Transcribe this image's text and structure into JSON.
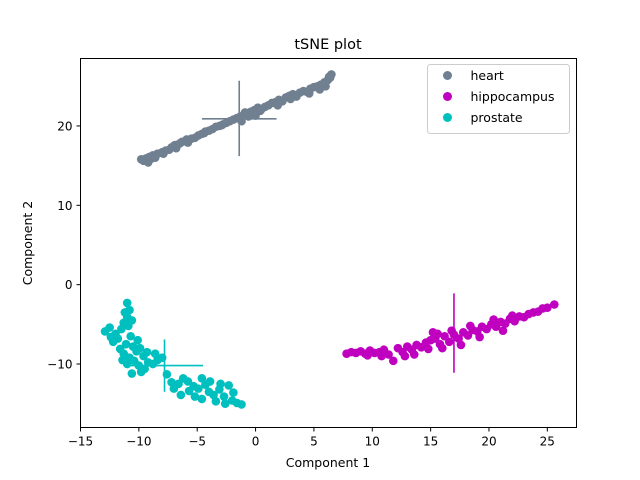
{
  "chart_data": {
    "type": "scatter",
    "title": "tSNE plot",
    "xlabel": "Component 1",
    "ylabel": "Component 2",
    "xlim": [
      -15,
      27.5
    ],
    "ylim": [
      -18,
      28.5
    ],
    "xticks": [
      -15,
      -10,
      -5,
      0,
      5,
      10,
      15,
      20,
      25
    ],
    "yticks": [
      -10,
      0,
      10,
      20
    ],
    "grid": false,
    "legend_position": "top-right",
    "series": [
      {
        "name": "heart",
        "color": "#708090",
        "centroid": [
          -1.4,
          20.9
        ],
        "error_x": [
          -4.6,
          1.8
        ],
        "error_y": [
          16.2,
          25.7
        ],
        "points": [
          [
            -9.6,
            15.6
          ],
          [
            -9.4,
            15.9
          ],
          [
            -9.1,
            16.1
          ],
          [
            -8.8,
            16.3
          ],
          [
            -9.8,
            15.8
          ],
          [
            -9.2,
            15.4
          ],
          [
            -8.6,
            16.0
          ],
          [
            -8.4,
            16.5
          ],
          [
            -8.0,
            16.7
          ],
          [
            -7.7,
            16.9
          ],
          [
            -7.4,
            17.0
          ],
          [
            -7.2,
            17.3
          ],
          [
            -7.0,
            17.5
          ],
          [
            -6.8,
            17.2
          ],
          [
            -6.5,
            17.8
          ],
          [
            -6.3,
            18.0
          ],
          [
            -6.0,
            18.1
          ],
          [
            -5.8,
            17.9
          ],
          [
            -5.5,
            18.4
          ],
          [
            -5.2,
            18.5
          ],
          [
            -4.9,
            18.8
          ],
          [
            -4.6,
            19.0
          ],
          [
            -4.3,
            19.3
          ],
          [
            -4.0,
            19.4
          ],
          [
            -3.7,
            19.6
          ],
          [
            -3.4,
            19.9
          ],
          [
            -3.1,
            20.0
          ],
          [
            -2.8,
            20.2
          ],
          [
            -2.5,
            20.4
          ],
          [
            -2.2,
            20.6
          ],
          [
            -1.9,
            20.8
          ],
          [
            -1.6,
            21.0
          ],
          [
            -1.3,
            21.2
          ],
          [
            -1.0,
            21.4
          ],
          [
            -0.7,
            21.6
          ],
          [
            -0.4,
            21.8
          ],
          [
            -0.1,
            22.0
          ],
          [
            0.2,
            22.3
          ],
          [
            0.5,
            22.1
          ],
          [
            0.8,
            22.4
          ],
          [
            -1.2,
            20.6
          ],
          [
            -0.6,
            21.2
          ],
          [
            1.1,
            22.6
          ],
          [
            1.4,
            22.9
          ],
          [
            1.7,
            23.0
          ],
          [
            2.0,
            23.3
          ],
          [
            2.3,
            23.1
          ],
          [
            2.6,
            23.6
          ],
          [
            2.9,
            23.8
          ],
          [
            3.2,
            24.0
          ],
          [
            3.5,
            23.7
          ],
          [
            3.8,
            24.2
          ],
          [
            4.1,
            24.4
          ],
          [
            4.4,
            24.3
          ],
          [
            4.7,
            24.7
          ],
          [
            5.0,
            24.9
          ],
          [
            5.3,
            25.0
          ],
          [
            5.6,
            25.2
          ],
          [
            5.9,
            25.5
          ],
          [
            6.2,
            25.8
          ],
          [
            6.4,
            26.1
          ],
          [
            6.5,
            26.5
          ],
          [
            6.3,
            26.2
          ],
          [
            -9.3,
            15.7
          ],
          [
            -8.9,
            15.9
          ],
          [
            -7.9,
            16.5
          ],
          [
            -6.9,
            17.6
          ],
          [
            -5.9,
            18.3
          ],
          [
            -4.4,
            19.1
          ],
          [
            -2.9,
            20.1
          ],
          [
            -0.9,
            21.7
          ],
          [
            0.0,
            21.3
          ],
          [
            0.4,
            21.9
          ],
          [
            1.9,
            22.6
          ],
          [
            3.0,
            23.4
          ],
          [
            4.6,
            24.1
          ],
          [
            5.5,
            24.6
          ],
          [
            6.0,
            25.0
          ]
        ]
      },
      {
        "name": "hippocampus",
        "color": "#bf00bf",
        "centroid": [
          17.0,
          -7.0
        ],
        "error_x": [
          16.9,
          17.1
        ],
        "error_y": [
          -11.1,
          -1.1
        ],
        "points": [
          [
            7.8,
            -8.7
          ],
          [
            8.2,
            -8.5
          ],
          [
            8.6,
            -8.6
          ],
          [
            9.0,
            -8.4
          ],
          [
            9.4,
            -8.7
          ],
          [
            9.8,
            -8.3
          ],
          [
            10.2,
            -8.6
          ],
          [
            10.6,
            -8.5
          ],
          [
            11.0,
            -8.2
          ],
          [
            11.4,
            -8.8
          ],
          [
            11.8,
            -9.6
          ],
          [
            12.2,
            -8.0
          ],
          [
            12.6,
            -8.5
          ],
          [
            13.0,
            -7.8
          ],
          [
            13.4,
            -8.2
          ],
          [
            13.8,
            -7.6
          ],
          [
            14.2,
            -7.9
          ],
          [
            14.6,
            -7.3
          ],
          [
            15.0,
            -7.0
          ],
          [
            15.4,
            -6.8
          ],
          [
            15.8,
            -7.5
          ],
          [
            16.2,
            -6.5
          ],
          [
            16.6,
            -7.2
          ],
          [
            17.0,
            -6.3
          ],
          [
            17.4,
            -6.8
          ],
          [
            17.8,
            -6.0
          ],
          [
            18.2,
            -6.4
          ],
          [
            18.6,
            -5.7
          ],
          [
            19.0,
            -5.9
          ],
          [
            19.4,
            -5.3
          ],
          [
            19.8,
            -5.6
          ],
          [
            20.2,
            -5.0
          ],
          [
            20.6,
            -5.3
          ],
          [
            21.0,
            -4.7
          ],
          [
            21.4,
            -4.9
          ],
          [
            21.8,
            -4.3
          ],
          [
            22.2,
            -4.6
          ],
          [
            22.6,
            -4.0
          ],
          [
            23.0,
            -4.1
          ],
          [
            23.4,
            -3.7
          ],
          [
            23.8,
            -3.5
          ],
          [
            24.2,
            -3.4
          ],
          [
            24.6,
            -3.0
          ],
          [
            25.0,
            -2.9
          ],
          [
            25.6,
            -2.5
          ],
          [
            15.6,
            -6.2
          ],
          [
            16.0,
            -8.0
          ],
          [
            16.8,
            -5.8
          ],
          [
            17.6,
            -7.6
          ],
          [
            18.4,
            -5.2
          ],
          [
            19.2,
            -6.6
          ],
          [
            20.4,
            -4.4
          ],
          [
            21.2,
            -5.8
          ],
          [
            22.0,
            -3.9
          ],
          [
            12.8,
            -9.0
          ],
          [
            13.6,
            -8.8
          ],
          [
            14.8,
            -8.1
          ],
          [
            10.8,
            -9.0
          ],
          [
            9.6,
            -8.9
          ],
          [
            15.2,
            -6.0
          ]
        ]
      },
      {
        "name": "prostate",
        "color": "#00bfbf",
        "centroid": [
          -7.8,
          -10.2
        ],
        "error_x": [
          -11.1,
          -4.5
        ],
        "error_y": [
          -13.5,
          -6.9
        ],
        "points": [
          [
            -11.0,
            -2.3
          ],
          [
            -11.2,
            -3.5
          ],
          [
            -10.8,
            -3.2
          ],
          [
            -11.0,
            -4.1
          ],
          [
            -10.6,
            -4.5
          ],
          [
            -11.3,
            -4.8
          ],
          [
            -10.9,
            -5.2
          ],
          [
            -11.5,
            -5.6
          ],
          [
            -12.9,
            -5.9
          ],
          [
            -12.5,
            -5.4
          ],
          [
            -12.0,
            -6.2
          ],
          [
            -11.8,
            -6.8
          ],
          [
            -12.2,
            -7.2
          ],
          [
            -10.7,
            -6.5
          ],
          [
            -11.1,
            -7.5
          ],
          [
            -10.5,
            -7.8
          ],
          [
            -11.6,
            -8.1
          ],
          [
            -10.2,
            -8.4
          ],
          [
            -11.3,
            -8.7
          ],
          [
            -9.9,
            -8.0
          ],
          [
            -10.8,
            -9.2
          ],
          [
            -9.6,
            -9.0
          ],
          [
            -10.4,
            -9.6
          ],
          [
            -9.2,
            -9.8
          ],
          [
            -10.0,
            -10.2
          ],
          [
            -8.8,
            -10.0
          ],
          [
            -9.5,
            -10.6
          ],
          [
            -8.4,
            -9.5
          ],
          [
            -10.6,
            -11.2
          ],
          [
            -11.0,
            -10.0
          ],
          [
            -8.6,
            -8.7
          ],
          [
            -8.0,
            -9.2
          ],
          [
            -7.6,
            -11.3
          ],
          [
            -6.2,
            -11.8
          ],
          [
            -6.6,
            -12.5
          ],
          [
            -5.8,
            -12.2
          ],
          [
            -5.3,
            -12.8
          ],
          [
            -5.7,
            -13.4
          ],
          [
            -4.9,
            -13.1
          ],
          [
            -4.3,
            -12.6
          ],
          [
            -4.0,
            -13.5
          ],
          [
            -3.6,
            -13.9
          ],
          [
            -3.9,
            -12.2
          ],
          [
            -3.1,
            -13.2
          ],
          [
            -2.7,
            -14.1
          ],
          [
            -2.3,
            -12.7
          ],
          [
            -2.0,
            -14.6
          ],
          [
            -1.6,
            -14.9
          ],
          [
            -1.2,
            -15.1
          ],
          [
            -4.6,
            -14.4
          ],
          [
            -5.2,
            -14.1
          ],
          [
            -3.4,
            -14.7
          ],
          [
            -2.6,
            -15.0
          ],
          [
            -7.0,
            -13.1
          ],
          [
            -6.4,
            -13.9
          ],
          [
            -9.8,
            -11.0
          ],
          [
            -10.1,
            -7.0
          ],
          [
            -11.4,
            -9.5
          ],
          [
            -9.3,
            -8.5
          ],
          [
            -12.4,
            -6.6
          ],
          [
            -7.2,
            -12.3
          ],
          [
            -4.6,
            -11.8
          ],
          [
            -3.0,
            -12.5
          ],
          [
            -1.9,
            -13.6
          ]
        ]
      }
    ]
  }
}
